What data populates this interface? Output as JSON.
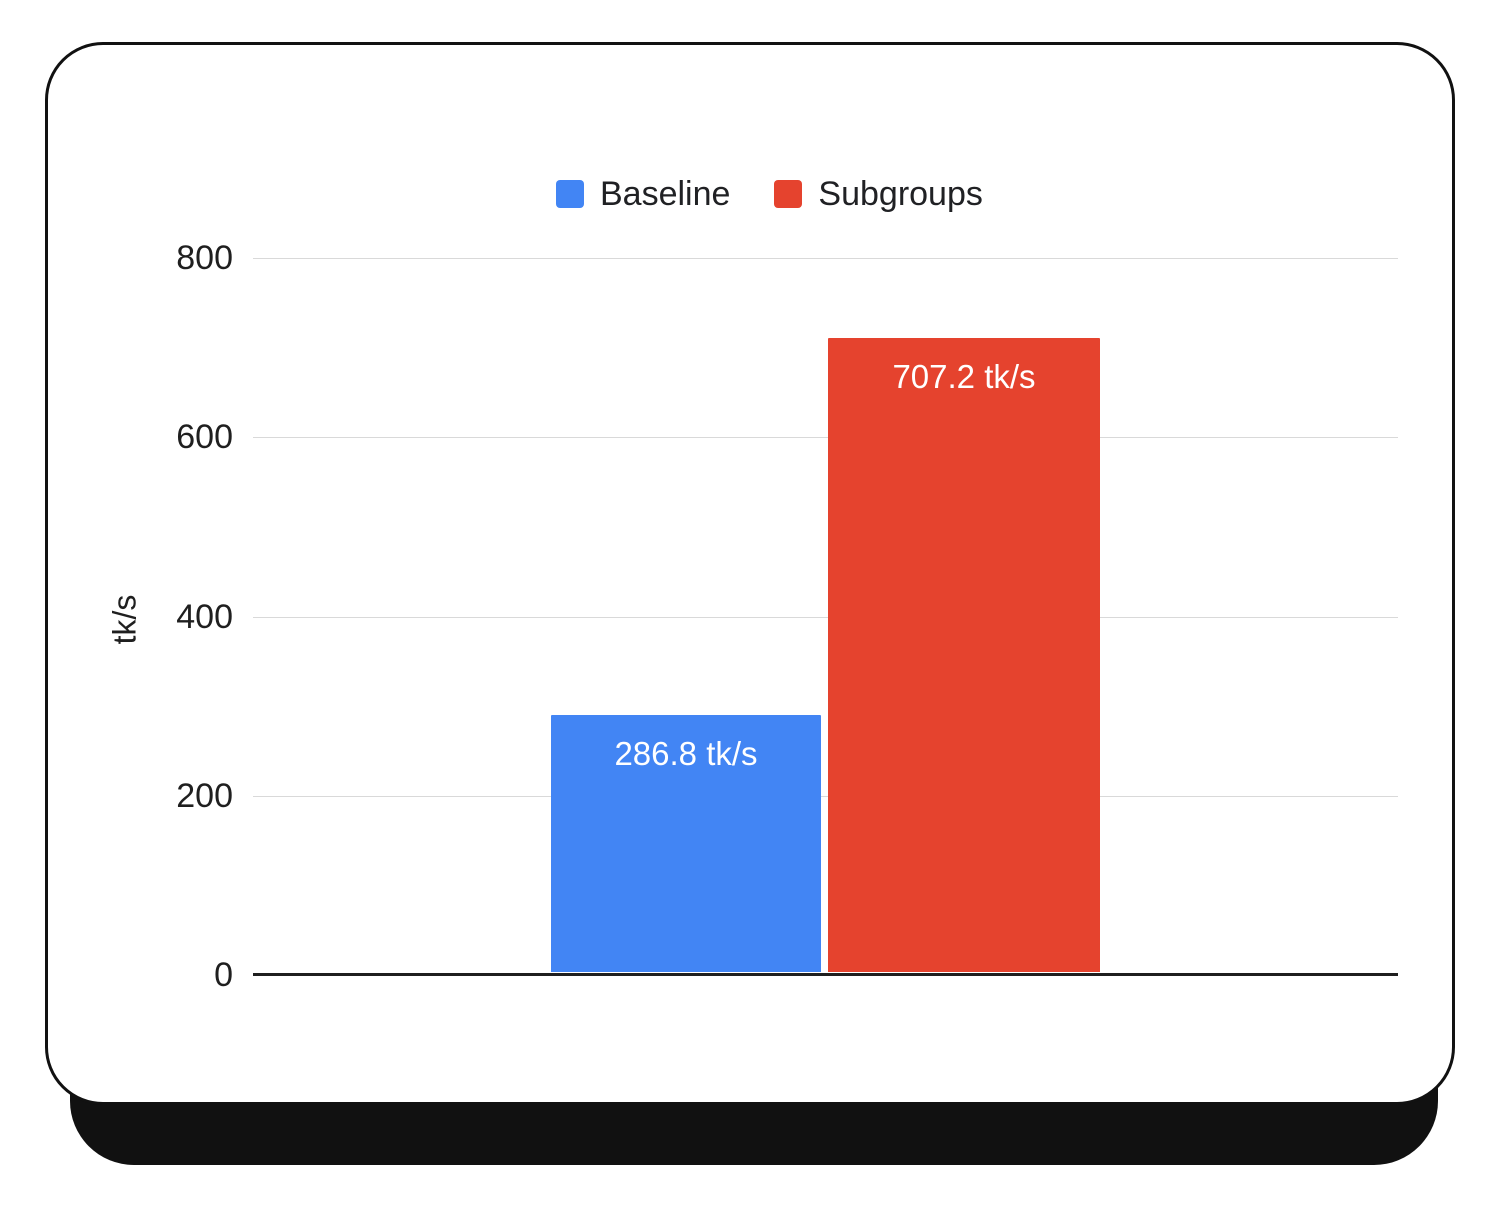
{
  "chart_data": {
    "type": "bar",
    "categories": [
      "Baseline",
      "Subgroups"
    ],
    "values": [
      286.8,
      707.2
    ],
    "bar_labels": [
      "286.8 tk/s",
      "707.2 tk/s"
    ],
    "colors": [
      "#4285F4",
      "#E5432E"
    ],
    "title": "",
    "xlabel": "",
    "ylabel": "tk/s",
    "ylim": [
      0,
      800
    ],
    "yticks": [
      0,
      200,
      400,
      600,
      800
    ],
    "grid": true,
    "legend_position": "top"
  },
  "legend": {
    "items": [
      {
        "label": "Baseline",
        "color": "#4285F4"
      },
      {
        "label": "Subgroups",
        "color": "#E5432E"
      }
    ]
  }
}
